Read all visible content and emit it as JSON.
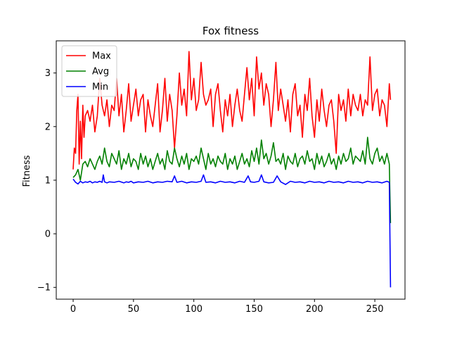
{
  "chart_data": {
    "type": "line",
    "title": "Fox fitness",
    "xlabel": "",
    "ylabel": "Fitness",
    "xlim": [
      -14,
      275
    ],
    "ylim": [
      -1.22,
      3.6
    ],
    "xticks": [
      0,
      50,
      100,
      150,
      200,
      250
    ],
    "yticks": [
      -1,
      0,
      1,
      2,
      3
    ],
    "grid": false,
    "legend_position": "top-left",
    "series": [
      {
        "name": "Max",
        "color": "#ff0000",
        "x": [
          0,
          1,
          2,
          3,
          4,
          5,
          6,
          7,
          8,
          9,
          10,
          12,
          14,
          16,
          18,
          20,
          22,
          24,
          26,
          28,
          30,
          32,
          34,
          36,
          38,
          40,
          42,
          44,
          46,
          48,
          50,
          52,
          54,
          56,
          58,
          60,
          62,
          64,
          66,
          68,
          70,
          72,
          74,
          76,
          78,
          80,
          82,
          84,
          86,
          88,
          90,
          92,
          94,
          96,
          98,
          100,
          102,
          104,
          106,
          108,
          110,
          112,
          114,
          116,
          118,
          120,
          122,
          124,
          126,
          128,
          130,
          132,
          134,
          136,
          138,
          140,
          142,
          144,
          146,
          148,
          150,
          152,
          154,
          156,
          158,
          160,
          162,
          164,
          166,
          168,
          170,
          172,
          174,
          176,
          178,
          180,
          182,
          184,
          186,
          188,
          190,
          192,
          194,
          196,
          198,
          200,
          202,
          204,
          206,
          208,
          210,
          212,
          214,
          216,
          218,
          220,
          222,
          224,
          226,
          228,
          230,
          232,
          234,
          236,
          238,
          240,
          242,
          244,
          246,
          248,
          250,
          252,
          254,
          256,
          258,
          260,
          262,
          263
        ],
        "y": [
          1.2,
          1.6,
          1.5,
          2.3,
          2.6,
          1.3,
          2.1,
          1.4,
          2.4,
          1.8,
          2.2,
          2.3,
          2.1,
          2.4,
          1.9,
          2.2,
          2.9,
          2.4,
          2.2,
          2.5,
          2.0,
          2.4,
          2.3,
          2.9,
          2.2,
          2.6,
          1.9,
          2.3,
          2.8,
          2.1,
          2.4,
          2.7,
          2.2,
          2.5,
          2.6,
          1.9,
          2.5,
          2.2,
          2.0,
          2.4,
          2.8,
          1.9,
          2.3,
          2.9,
          2.1,
          2.6,
          2.3,
          1.6,
          2.2,
          3.0,
          2.4,
          2.7,
          2.2,
          3.4,
          2.5,
          2.9,
          2.3,
          2.5,
          3.2,
          2.6,
          2.4,
          2.5,
          2.7,
          2.0,
          2.6,
          2.8,
          2.3,
          1.9,
          2.5,
          2.2,
          2.6,
          2.0,
          2.4,
          2.7,
          2.3,
          2.1,
          2.6,
          3.1,
          2.5,
          2.9,
          2.2,
          3.3,
          2.7,
          3.0,
          2.4,
          2.8,
          2.6,
          2.0,
          2.5,
          3.2,
          2.3,
          2.7,
          2.4,
          2.1,
          2.5,
          1.9,
          2.6,
          2.8,
          2.2,
          2.4,
          1.8,
          2.6,
          2.3,
          2.9,
          2.2,
          1.8,
          2.5,
          2.1,
          2.7,
          2.3,
          2.0,
          2.4,
          2.5,
          2.1,
          1.5,
          2.6,
          2.3,
          2.5,
          2.1,
          2.7,
          2.2,
          2.6,
          2.4,
          2.3,
          2.6,
          2.2,
          2.5,
          2.4,
          3.3,
          2.3,
          2.6,
          2.7,
          2.2,
          2.5,
          2.4,
          2.0,
          2.8,
          2.5
        ]
      },
      {
        "name": "Avg",
        "color": "#008000",
        "x": [
          0,
          2,
          4,
          6,
          8,
          10,
          12,
          14,
          16,
          18,
          20,
          22,
          24,
          26,
          28,
          30,
          32,
          34,
          36,
          38,
          40,
          42,
          44,
          46,
          48,
          50,
          52,
          54,
          56,
          58,
          60,
          62,
          64,
          66,
          68,
          70,
          72,
          74,
          76,
          78,
          80,
          82,
          84,
          86,
          88,
          90,
          92,
          94,
          96,
          98,
          100,
          102,
          104,
          106,
          108,
          110,
          112,
          114,
          116,
          118,
          120,
          122,
          124,
          126,
          128,
          130,
          132,
          134,
          136,
          138,
          140,
          142,
          144,
          146,
          148,
          150,
          152,
          154,
          156,
          158,
          160,
          162,
          164,
          166,
          168,
          170,
          172,
          174,
          176,
          178,
          180,
          182,
          184,
          186,
          188,
          190,
          192,
          194,
          196,
          198,
          200,
          202,
          204,
          206,
          208,
          210,
          212,
          214,
          216,
          218,
          220,
          222,
          224,
          226,
          228,
          230,
          232,
          234,
          236,
          238,
          240,
          242,
          244,
          246,
          248,
          250,
          252,
          254,
          256,
          258,
          260,
          262,
          263
        ],
        "y": [
          1.05,
          1.1,
          1.2,
          1.0,
          1.3,
          1.35,
          1.25,
          1.4,
          1.3,
          1.2,
          1.35,
          1.45,
          1.3,
          1.6,
          1.35,
          1.25,
          1.5,
          1.4,
          1.3,
          1.55,
          1.2,
          1.4,
          1.3,
          1.5,
          1.25,
          1.4,
          1.35,
          1.2,
          1.5,
          1.3,
          1.45,
          1.25,
          1.4,
          1.2,
          1.35,
          1.5,
          1.3,
          1.4,
          1.2,
          1.55,
          1.35,
          1.3,
          1.6,
          1.4,
          1.25,
          1.45,
          1.3,
          1.5,
          1.2,
          1.4,
          1.35,
          1.45,
          1.3,
          1.6,
          1.4,
          1.2,
          1.5,
          1.3,
          1.4,
          1.25,
          1.45,
          1.35,
          1.3,
          1.5,
          1.2,
          1.4,
          1.3,
          1.45,
          1.2,
          1.35,
          1.5,
          1.3,
          1.4,
          1.25,
          1.55,
          1.35,
          1.6,
          1.3,
          1.75,
          1.4,
          1.5,
          1.3,
          1.45,
          1.7,
          1.35,
          1.4,
          1.3,
          1.5,
          1.2,
          1.45,
          1.35,
          1.3,
          1.5,
          1.25,
          1.4,
          1.45,
          1.3,
          1.55,
          1.35,
          1.4,
          1.2,
          1.5,
          1.3,
          1.45,
          1.25,
          1.35,
          1.5,
          1.3,
          1.4,
          1.2,
          1.45,
          1.3,
          1.5,
          1.35,
          1.4,
          1.6,
          1.3,
          1.45,
          1.4,
          1.35,
          1.55,
          1.3,
          1.8,
          1.4,
          1.3,
          1.5,
          1.6,
          1.35,
          1.45,
          1.3,
          1.5,
          1.3,
          0.2
        ]
      },
      {
        "name": "Min",
        "color": "#0000ff",
        "x": [
          0,
          2,
          4,
          6,
          8,
          10,
          12,
          14,
          16,
          18,
          20,
          22,
          24,
          25,
          26,
          28,
          30,
          34,
          38,
          42,
          44,
          46,
          48,
          50,
          54,
          58,
          62,
          66,
          70,
          74,
          78,
          82,
          84,
          86,
          90,
          94,
          98,
          102,
          106,
          108,
          110,
          114,
          118,
          122,
          126,
          130,
          134,
          138,
          142,
          145,
          147,
          150,
          154,
          156,
          158,
          162,
          166,
          169,
          172,
          176,
          180,
          184,
          188,
          192,
          196,
          200,
          204,
          208,
          212,
          216,
          220,
          224,
          228,
          232,
          236,
          240,
          244,
          248,
          252,
          256,
          260,
          262,
          263
        ],
        "y": [
          1.02,
          0.96,
          0.93,
          0.98,
          0.95,
          0.97,
          0.96,
          0.98,
          0.95,
          0.97,
          0.96,
          0.98,
          0.96,
          1.1,
          0.97,
          0.95,
          0.97,
          0.96,
          0.98,
          0.95,
          0.97,
          0.96,
          0.98,
          0.95,
          0.97,
          0.96,
          0.98,
          0.95,
          0.97,
          0.96,
          0.98,
          0.97,
          1.08,
          0.96,
          0.98,
          0.95,
          0.97,
          0.96,
          0.98,
          1.1,
          0.96,
          0.97,
          0.95,
          0.98,
          0.96,
          0.97,
          0.95,
          0.98,
          0.96,
          1.08,
          0.97,
          0.96,
          0.98,
          1.1,
          0.97,
          0.95,
          0.96,
          1.08,
          0.97,
          0.92,
          0.98,
          0.96,
          0.97,
          0.95,
          0.98,
          0.96,
          0.97,
          0.95,
          0.98,
          0.96,
          0.97,
          0.95,
          0.98,
          0.96,
          0.97,
          0.95,
          0.98,
          0.96,
          0.97,
          0.95,
          0.98,
          0.96,
          -1.0
        ]
      }
    ]
  }
}
